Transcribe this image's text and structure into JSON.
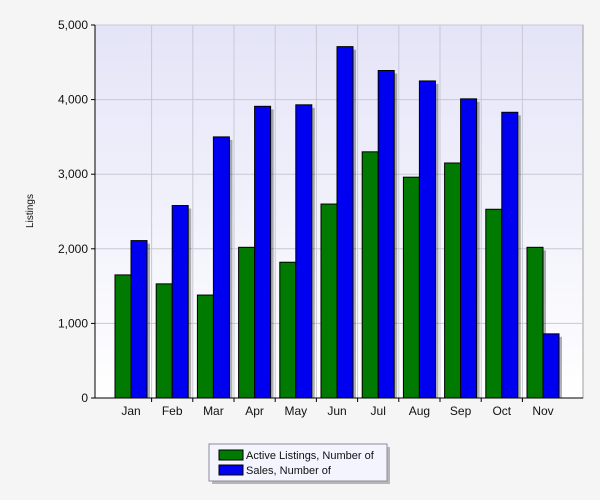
{
  "chart_data": {
    "type": "bar",
    "title": "",
    "xlabel": "",
    "ylabel": "Listings",
    "ylim": [
      0,
      5000
    ],
    "yticks": [
      "0",
      "1,000",
      "2,000",
      "3,000",
      "4,000",
      "5,000"
    ],
    "ytick_values": [
      0,
      1000,
      2000,
      3000,
      4000,
      5000
    ],
    "categories": [
      "Jan",
      "Feb",
      "Mar",
      "Apr",
      "May",
      "Jun",
      "Jul",
      "Aug",
      "Sep",
      "Oct",
      "Nov"
    ],
    "series": [
      {
        "name": "Active Listings, Number of",
        "color": "#007A00",
        "values": [
          1650,
          1530,
          1380,
          2020,
          1820,
          2600,
          3300,
          2960,
          3150,
          2530,
          2020
        ]
      },
      {
        "name": "Sales, Number of",
        "color": "#0000F0",
        "values": [
          2110,
          2580,
          3500,
          3910,
          3930,
          4710,
          4390,
          4250,
          4010,
          3830,
          860
        ]
      }
    ],
    "grid": true,
    "legend_position": "bottom-center",
    "background_gradient": [
      "#E6E6FA",
      "#FFFFFF"
    ]
  }
}
